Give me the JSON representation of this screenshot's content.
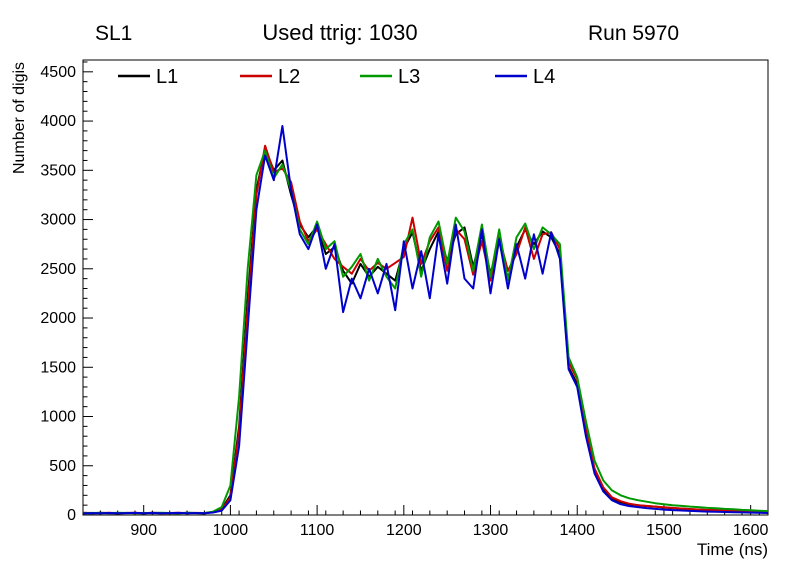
{
  "chart_data": {
    "type": "line",
    "annotations": {
      "top_left": "SL1",
      "top_center": "Used ttrig: 1030",
      "top_right": "Run 5970"
    },
    "xlabel": "Time (ns)",
    "ylabel": "Number of digis",
    "xlim": [
      830,
      1620
    ],
    "ylim": [
      0,
      4620
    ],
    "x_ticks": [
      900,
      1000,
      1100,
      1200,
      1300,
      1400,
      1500,
      1600
    ],
    "y_ticks": [
      0,
      500,
      1000,
      1500,
      2000,
      2500,
      3000,
      3500,
      4000,
      4500
    ],
    "x_minor_step": 20,
    "y_minor_step": 100,
    "grid": false,
    "legend": [
      "L1",
      "L2",
      "L3",
      "L4"
    ],
    "legend_position": "top-inside",
    "x": [
      830,
      840,
      850,
      860,
      870,
      880,
      890,
      900,
      910,
      920,
      930,
      940,
      950,
      960,
      970,
      980,
      990,
      1000,
      1010,
      1020,
      1030,
      1040,
      1050,
      1060,
      1070,
      1080,
      1090,
      1100,
      1110,
      1120,
      1130,
      1140,
      1150,
      1160,
      1170,
      1180,
      1190,
      1200,
      1210,
      1220,
      1230,
      1240,
      1250,
      1260,
      1270,
      1280,
      1290,
      1300,
      1310,
      1320,
      1330,
      1340,
      1350,
      1360,
      1370,
      1380,
      1390,
      1400,
      1410,
      1420,
      1430,
      1440,
      1450,
      1460,
      1470,
      1480,
      1490,
      1500,
      1510,
      1520,
      1530,
      1540,
      1550,
      1560,
      1570,
      1580,
      1590,
      1600,
      1610,
      1620
    ],
    "series": [
      {
        "name": "L1",
        "color": "#000000",
        "values": [
          20,
          18,
          22,
          19,
          17,
          21,
          20,
          18,
          23,
          20,
          19,
          17,
          22,
          20,
          18,
          30,
          60,
          200,
          900,
          2200,
          3300,
          3720,
          3500,
          3600,
          3250,
          2950,
          2820,
          2930,
          2650,
          2720,
          2480,
          2350,
          2550,
          2420,
          2520,
          2450,
          2380,
          2700,
          2870,
          2480,
          2700,
          2880,
          2580,
          2850,
          2920,
          2520,
          2850,
          2450,
          2780,
          2400,
          2720,
          2900,
          2750,
          2880,
          2820,
          2650,
          1500,
          1330,
          850,
          450,
          260,
          170,
          130,
          110,
          100,
          90,
          85,
          75,
          70,
          65,
          60,
          55,
          50,
          48,
          45,
          42,
          40,
          35,
          32,
          30
        ]
      },
      {
        "name": "L2",
        "color": "#cc0000",
        "values": [
          22,
          20,
          19,
          23,
          18,
          20,
          22,
          19,
          21,
          18,
          20,
          22,
          19,
          21,
          20,
          28,
          55,
          180,
          850,
          2100,
          3250,
          3750,
          3480,
          3520,
          3380,
          2980,
          2780,
          2900,
          2750,
          2600,
          2520,
          2450,
          2600,
          2480,
          2560,
          2500,
          2560,
          2620,
          3020,
          2550,
          2780,
          2920,
          2480,
          2900,
          2800,
          2440,
          2780,
          2380,
          2820,
          2480,
          2650,
          2920,
          2600,
          2850,
          2870,
          2700,
          1550,
          1380,
          880,
          470,
          280,
          180,
          140,
          115,
          100,
          92,
          85,
          78,
          72,
          66,
          60,
          56,
          52,
          50,
          46,
          44,
          40,
          36,
          34,
          30
        ]
      },
      {
        "name": "L3",
        "color": "#009900",
        "values": [
          18,
          21,
          20,
          19,
          22,
          20,
          18,
          21,
          19,
          22,
          20,
          18,
          21,
          20,
          19,
          35,
          80,
          300,
          1200,
          2500,
          3450,
          3700,
          3420,
          3560,
          3300,
          2900,
          2750,
          2980,
          2700,
          2780,
          2420,
          2520,
          2650,
          2380,
          2600,
          2420,
          2300,
          2750,
          2900,
          2420,
          2820,
          2980,
          2550,
          3020,
          2880,
          2480,
          2950,
          2420,
          2900,
          2380,
          2820,
          2960,
          2700,
          2920,
          2850,
          2750,
          1600,
          1400,
          950,
          550,
          350,
          250,
          200,
          170,
          150,
          135,
          120,
          110,
          100,
          92,
          85,
          80,
          72,
          68,
          62,
          58,
          52,
          48,
          44,
          40
        ]
      },
      {
        "name": "L4",
        "color": "#0000cc",
        "values": [
          16,
          19,
          18,
          20,
          17,
          19,
          21,
          18,
          20,
          17,
          19,
          21,
          18,
          20,
          17,
          25,
          45,
          150,
          700,
          1900,
          3100,
          3650,
          3400,
          3950,
          3300,
          2850,
          2700,
          2950,
          2500,
          2750,
          2060,
          2400,
          2200,
          2500,
          2250,
          2550,
          2080,
          2780,
          2300,
          2680,
          2200,
          2850,
          2350,
          2950,
          2400,
          2300,
          2900,
          2250,
          2800,
          2300,
          2750,
          2400,
          2850,
          2450,
          2870,
          2600,
          1480,
          1300,
          800,
          420,
          240,
          150,
          110,
          90,
          80,
          70,
          62,
          55,
          50,
          46,
          42,
          38,
          35,
          32,
          30,
          28,
          26,
          24,
          22,
          20
        ]
      }
    ]
  }
}
